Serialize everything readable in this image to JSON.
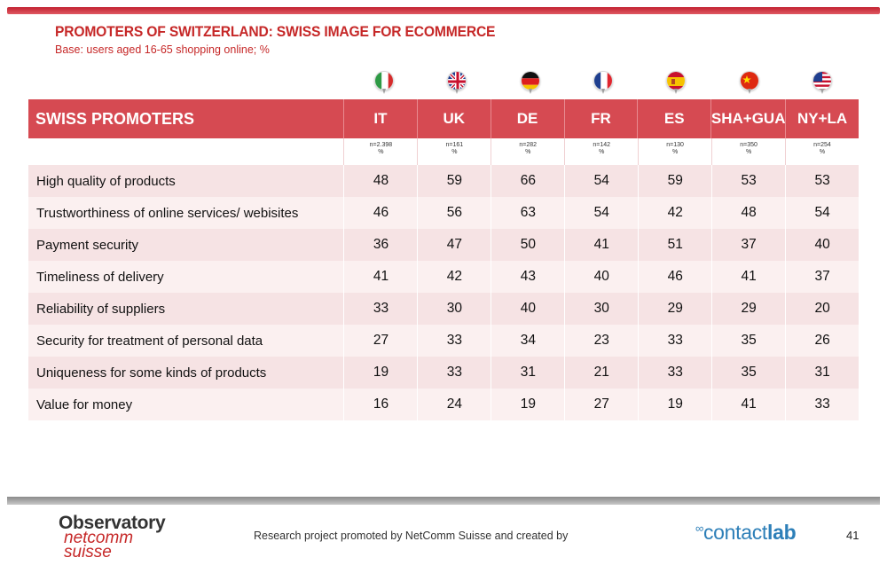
{
  "title": "PROMOTERS OF SWITZERLAND: SWISS IMAGE FOR ECOMMERCE",
  "subtitle": "Base: users aged 16-65 shopping online; %",
  "table": {
    "header_label": "SWISS PROMOTERS",
    "columns": [
      {
        "label": "IT",
        "n": "n=2.398",
        "unit": "%",
        "flag": "italy-flag-icon"
      },
      {
        "label": "UK",
        "n": "n=161",
        "unit": "%",
        "flag": "uk-flag-icon"
      },
      {
        "label": "DE",
        "n": "n=282",
        "unit": "%",
        "flag": "germany-flag-icon"
      },
      {
        "label": "FR",
        "n": "n=142",
        "unit": "%",
        "flag": "france-flag-icon"
      },
      {
        "label": "ES",
        "n": "n=130",
        "unit": "%",
        "flag": "spain-flag-icon"
      },
      {
        "label": "SHA+GUA",
        "n": "n=350",
        "unit": "%",
        "flag": "china-flag-icon"
      },
      {
        "label": "NY+LA",
        "n": "n=254",
        "unit": "%",
        "flag": "usa-flag-icon"
      }
    ],
    "rows": [
      {
        "label": "High quality of products",
        "values": [
          "48",
          "59",
          "66",
          "54",
          "59",
          "53",
          "53"
        ]
      },
      {
        "label": "Trustworthiness of online services/ webisites",
        "values": [
          "46",
          "56",
          "63",
          "54",
          "42",
          "48",
          "54"
        ]
      },
      {
        "label": "Payment security",
        "values": [
          "36",
          "47",
          "50",
          "41",
          "51",
          "37",
          "40"
        ]
      },
      {
        "label": "Timeliness of delivery",
        "values": [
          "41",
          "42",
          "43",
          "40",
          "46",
          "41",
          "37"
        ]
      },
      {
        "label": "Reliability of suppliers",
        "values": [
          "33",
          "30",
          "40",
          "30",
          "29",
          "29",
          "20"
        ]
      },
      {
        "label": "Security for treatment of personal data",
        "values": [
          "27",
          "33",
          "34",
          "23",
          "33",
          "35",
          "26"
        ]
      },
      {
        "label": "Uniqueness for some kinds of products",
        "values": [
          "19",
          "33",
          "31",
          "21",
          "33",
          "35",
          "31"
        ]
      },
      {
        "label": "Value for money",
        "values": [
          "16",
          "24",
          "19",
          "27",
          "19",
          "41",
          "33"
        ]
      }
    ]
  },
  "footer": {
    "logo_line1": "Observatory",
    "logo_line2": "netcomm",
    "logo_line3": "suisse",
    "credit": "Research project promoted by NetComm Suisse and created by",
    "brand_a": "contact",
    "brand_b": "lab",
    "page": "41"
  },
  "colors": {
    "accent": "#c62828",
    "header_bg": "#d64a52",
    "row_odd": "#f6e3e4",
    "row_even": "#fbf0f0"
  }
}
